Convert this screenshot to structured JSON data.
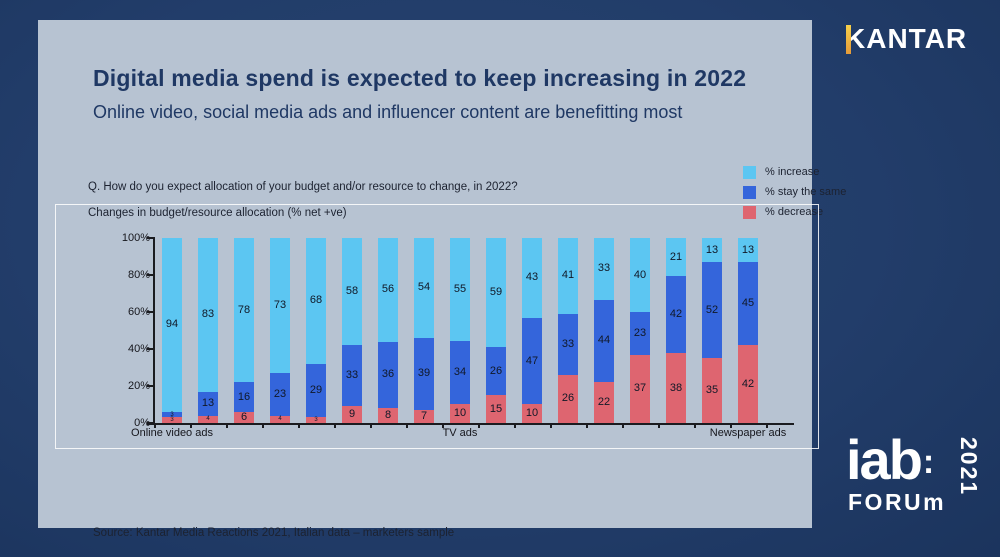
{
  "header": {
    "title": "Digital media spend is expected to keep increasing in 2022",
    "subtitle": "Online video, social media ads and influencer content are benefitting most"
  },
  "question": {
    "line1": "Q. How do you expect allocation of your budget and/or resource to change, in 2022?",
    "line2": "Changes in budget/resource allocation (% net +ve)"
  },
  "legend": [
    {
      "label": "% increase",
      "color": "#5cc6f2"
    },
    {
      "label": "% stay the same",
      "color": "#3465db"
    },
    {
      "label": "% decrease",
      "color": "#de6570"
    }
  ],
  "chart_data": {
    "type": "bar",
    "stacked": true,
    "title": "Changes in budget/resource allocation (% net +ve)",
    "categories": [
      "Online video ads",
      "",
      "",
      "",
      "",
      "",
      "",
      "",
      "TV ads",
      "",
      "",
      "",
      "",
      "",
      "",
      "",
      "Newspaper ads"
    ],
    "series": [
      {
        "name": "% increase",
        "color": "#5cc6f2",
        "values": [
          94,
          83,
          78,
          73,
          68,
          58,
          56,
          54,
          55,
          59,
          43,
          41,
          33,
          40,
          21,
          13,
          13
        ]
      },
      {
        "name": "% stay the same",
        "color": "#3465db",
        "values": [
          3,
          13,
          16,
          23,
          29,
          33,
          36,
          39,
          34,
          26,
          47,
          33,
          44,
          23,
          42,
          52,
          45
        ]
      },
      {
        "name": "% decrease",
        "color": "#de6570",
        "values": [
          3,
          4,
          6,
          4,
          3,
          9,
          8,
          7,
          10,
          15,
          10,
          26,
          22,
          37,
          38,
          35,
          42
        ]
      }
    ],
    "y_ticks": [
      "0%",
      "20%",
      "40%",
      "60%",
      "80%",
      "100%"
    ],
    "ylim": [
      0,
      100
    ],
    "legend_position": "top-right",
    "grid": false
  },
  "source": "Source: Kantar Media Reactions 2021, Italian data – marketers sample",
  "logos": {
    "kantar": {
      "k": "K",
      "rest": "ANTAR"
    },
    "iab": {
      "name": "iab",
      "colon": ":",
      "forum": "FORUm",
      "year": "2021"
    }
  },
  "colors": {
    "background": "#223d6a",
    "slide": "#b7c3d2",
    "title_text": "#1f3864",
    "axis": "#1a1b20"
  }
}
